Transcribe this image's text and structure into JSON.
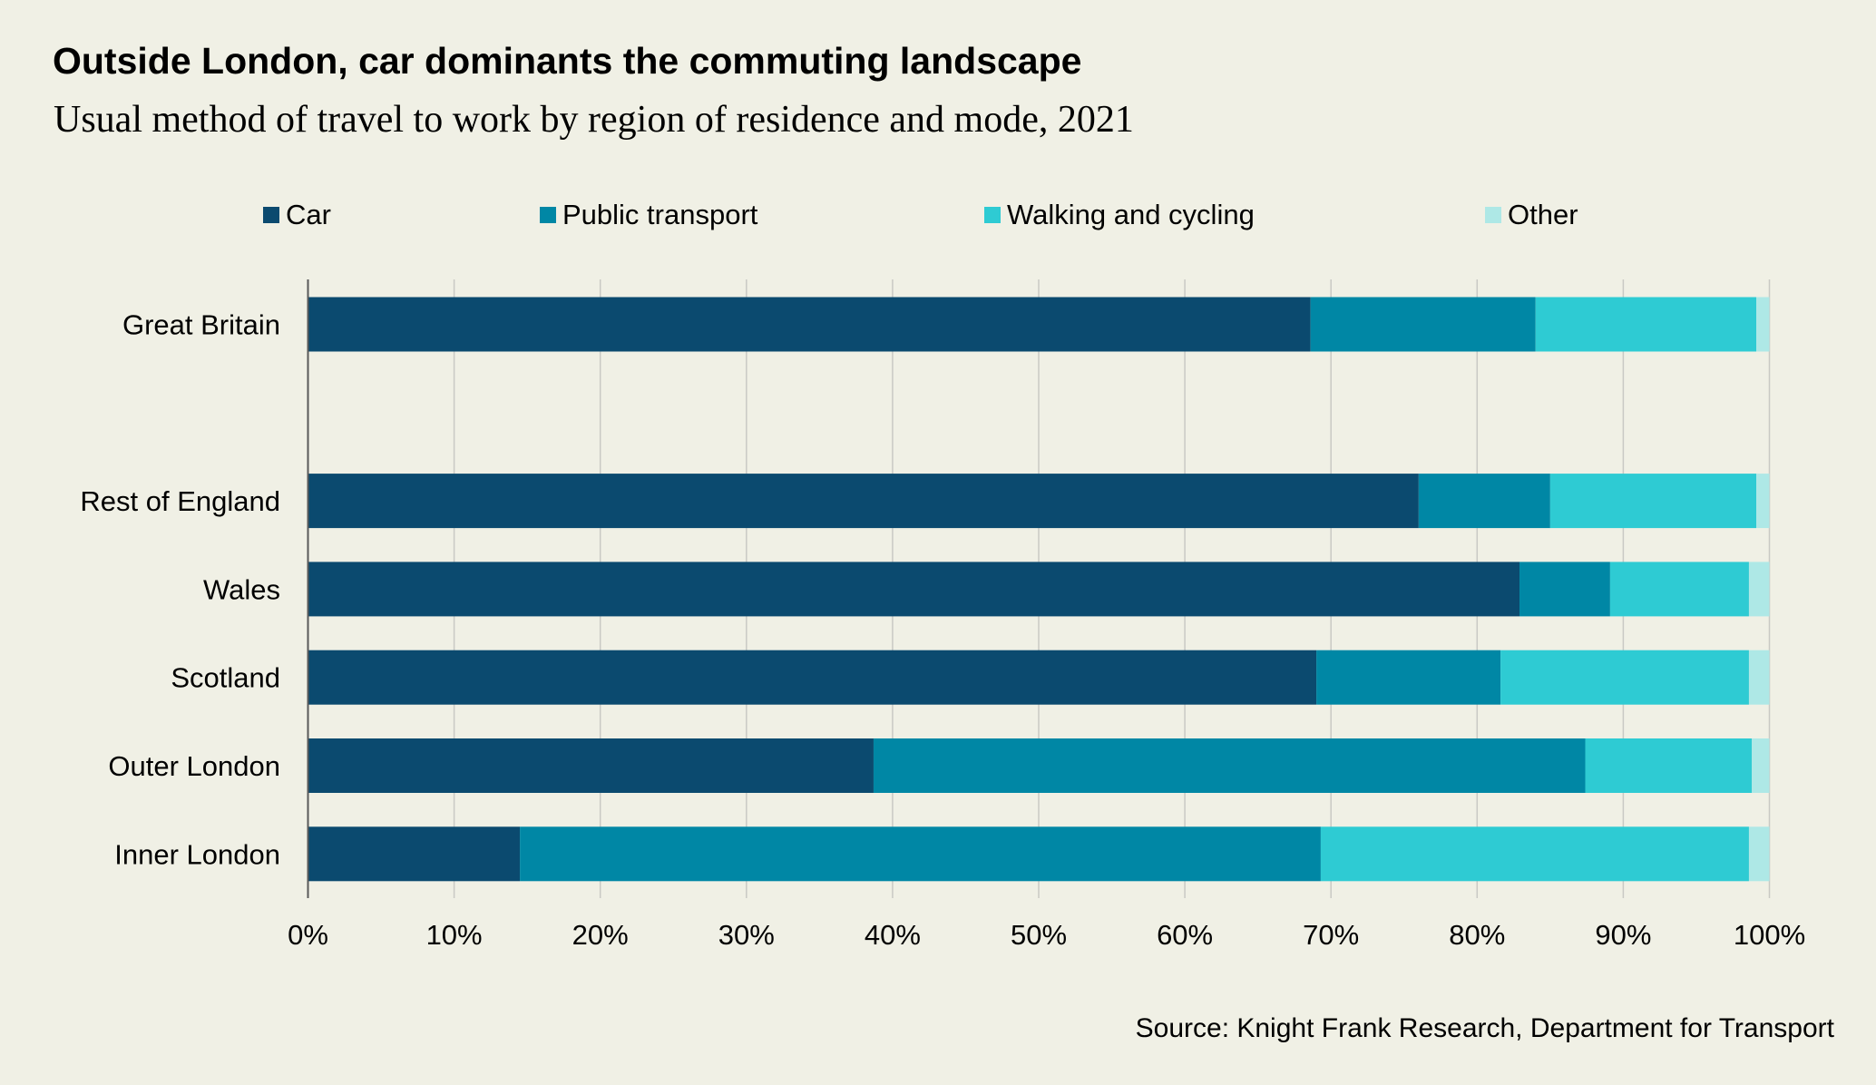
{
  "header": {
    "title": "Outside London, car dominants the commuting landscape",
    "subtitle": "Usual method of travel to work by region of residence and mode, 2021"
  },
  "legend": [
    {
      "label": "Car",
      "color": "#0B4A6F"
    },
    {
      "label": "Public transport",
      "color": "#0087A5"
    },
    {
      "label": "Walking and cycling",
      "color": "#2ECBD3"
    },
    {
      "label": "Other",
      "color": "#AEE8E6"
    }
  ],
  "source": "Source: Knight Frank Research, Department for Transport",
  "chart_data": {
    "type": "bar",
    "orientation": "horizontal",
    "stacked": true,
    "title": "Outside London, car dominants the commuting landscape",
    "subtitle": "Usual method of travel to work by region of residence and mode, 2021",
    "xlabel": "",
    "ylabel": "",
    "xlim": [
      0,
      100
    ],
    "x_tick_labels": [
      "0%",
      "10%",
      "20%",
      "30%",
      "40%",
      "50%",
      "60%",
      "70%",
      "80%",
      "90%",
      "100%"
    ],
    "grid": "vertical",
    "legend_position": "top",
    "categories": [
      "Great Britain",
      "",
      "Rest of England",
      "Wales",
      "Scotland",
      "Outer London",
      "Inner London"
    ],
    "series": [
      {
        "name": "Car",
        "color": "#0B4A6F",
        "values": [
          68.6,
          null,
          76.0,
          82.9,
          69.0,
          38.7,
          14.5
        ]
      },
      {
        "name": "Public transport",
        "color": "#0087A5",
        "values": [
          15.4,
          null,
          9.0,
          6.2,
          12.6,
          48.7,
          54.8
        ]
      },
      {
        "name": "Walking and cycling",
        "color": "#2ECBD3",
        "values": [
          15.1,
          null,
          14.1,
          9.5,
          17.0,
          11.4,
          29.3
        ]
      },
      {
        "name": "Other",
        "color": "#AEE8E6",
        "values": [
          0.9,
          null,
          0.9,
          1.4,
          1.4,
          1.2,
          1.4
        ]
      }
    ],
    "source": "Source: Knight Frank Research, Department for Transport"
  }
}
